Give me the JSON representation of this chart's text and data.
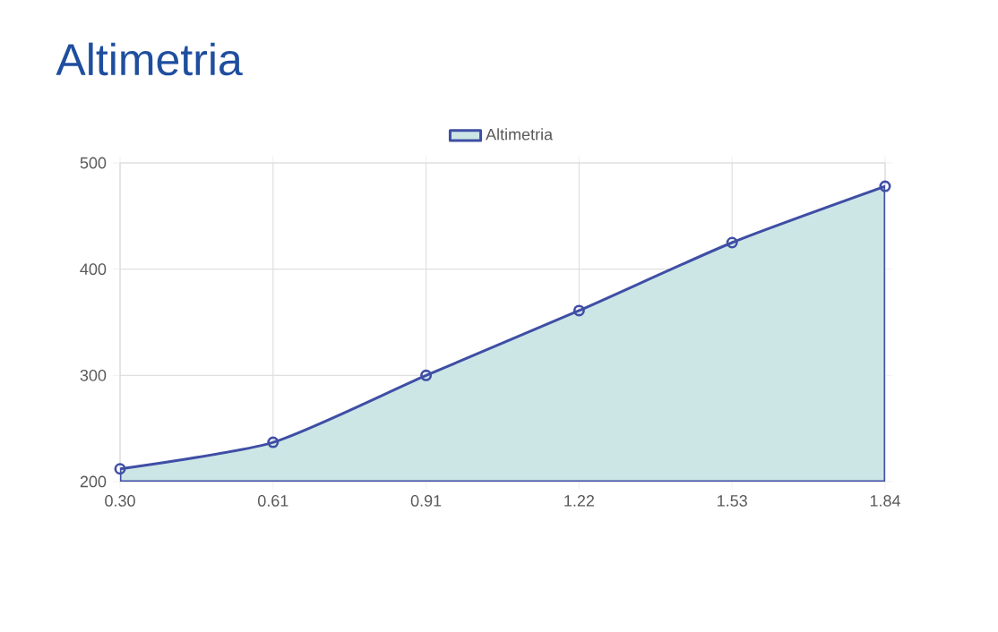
{
  "chart_data": {
    "type": "area",
    "title": "Altimetria",
    "categories": [
      "0.30",
      "0.61",
      "0.91",
      "1.22",
      "1.53",
      "1.84"
    ],
    "series": [
      {
        "name": "Altimetria",
        "color": "#3f4ea5",
        "values": [
          212,
          237,
          300,
          361,
          425,
          478
        ]
      }
    ],
    "ylim": [
      200,
      500
    ],
    "yticks": [
      200,
      300,
      400,
      500
    ],
    "grid": true,
    "legend": "top",
    "marker": "circle",
    "line_style": "solid"
  }
}
